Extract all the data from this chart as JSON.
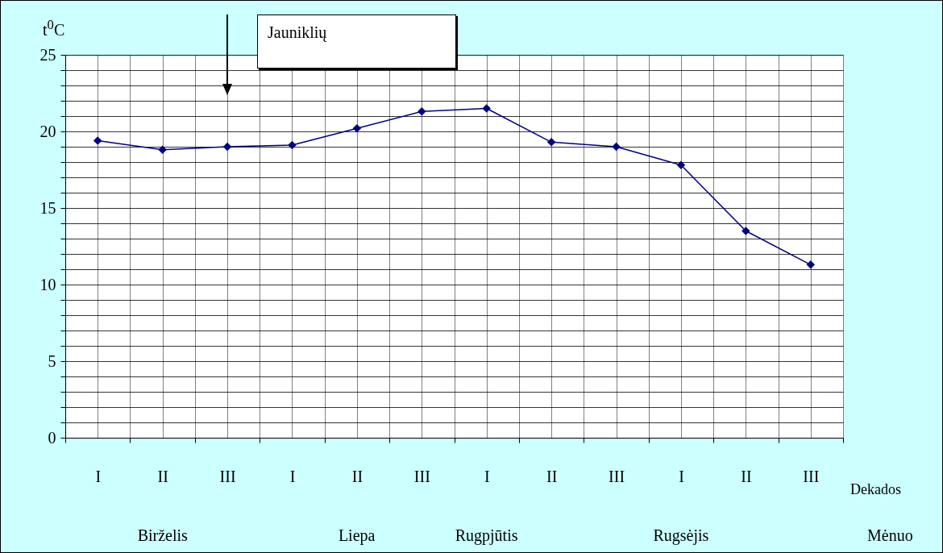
{
  "chart_data": {
    "type": "line",
    "ylabel": "t$^{0}$C",
    "xlabel": "Dekados",
    "categories": [
      "I",
      "II",
      "III",
      "I",
      "II",
      "III",
      "I",
      "II",
      "III",
      "I",
      "II",
      "III"
    ],
    "series": [
      {
        "color": "#000080",
        "values": [
          19.4,
          18.8,
          19.0,
          19.1,
          20.2,
          21.3,
          21.5,
          19.3,
          19.0,
          17.8,
          13.5,
          11.3
        ]
      }
    ],
    "ylim": [
      0,
      25
    ],
    "yticks": [
      0,
      {
        "value": 1,
        "label": null
      },
      {
        "value": 2,
        "label": null
      },
      {
        "value": 3,
        "label": null
      },
      {
        "value": 4,
        "label": null
      },
      5,
      {
        "value": 6,
        "label": null
      },
      {
        "value": 7,
        "label": null
      },
      {
        "value": 8,
        "label": null
      },
      {
        "value": 9,
        "label": null
      },
      10,
      {
        "value": 11,
        "label": null
      },
      {
        "value": 12,
        "label": null
      },
      {
        "value": 13,
        "label": null
      },
      {
        "value": 14,
        "label": null
      },
      15,
      {
        "value": 16,
        "label": null
      },
      {
        "value": 17,
        "label": null
      },
      {
        "value": 18,
        "label": null
      },
      {
        "value": 19,
        "label": null
      },
      20,
      {
        "value": 21,
        "label": null
      },
      {
        "value": 22,
        "label": null
      },
      {
        "value": 23,
        "label": null
      },
      {
        "value": 24,
        "label": null
      },
      25
    ],
    "grid": true,
    "marker": "diamond",
    "annotations": [
      "Jauniklių",
      "Birželis",
      "Liepa",
      "Rugpjūtis",
      "Rugsėjis",
      "Mėnuo"
    ]
  }
}
